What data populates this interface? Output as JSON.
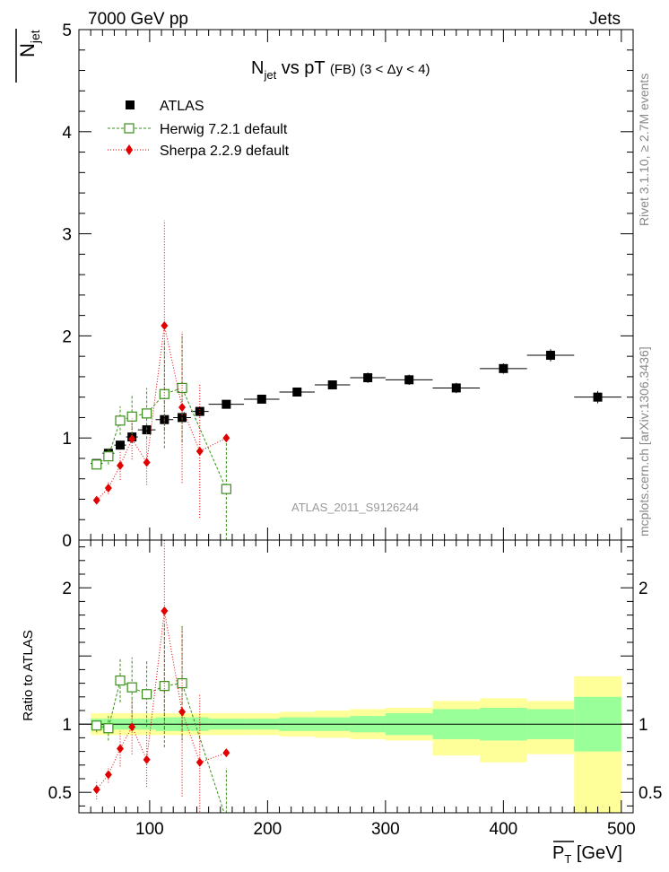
{
  "header": {
    "left": "7000 GeV pp",
    "right": "Jets"
  },
  "side_labels": {
    "rivet": "Rivet 3.1.10, ≥ 2.7M events",
    "mcplots": "mcplots.cern.ch [arXiv:1306.3436]"
  },
  "watermark": "ATLAS_2011_S9126244",
  "chart_data": [
    {
      "type": "scatter",
      "panel": "main",
      "title": "N_jet vs pT (FB) (3 < Δy < 4)",
      "title_parts": {
        "main": "N",
        "sub": "jet",
        "mid": " vs pT ",
        "small": "(FB) (3 < Δy < 4)"
      },
      "ylabel_parts": {
        "main": "N",
        "sub": "jet"
      },
      "xlabel": "",
      "xlim": [
        40,
        510
      ],
      "ylim": [
        0,
        5
      ],
      "x_ticks": [
        100,
        200,
        300,
        400,
        500
      ],
      "y_ticks": [
        0,
        1,
        2,
        3,
        4,
        5
      ],
      "y_tick_labels": [
        "0",
        "1",
        "2",
        "3",
        "4",
        "5"
      ],
      "legend": {
        "position": "top-left",
        "entries": [
          {
            "label": "ATLAS",
            "series": "ATLAS"
          },
          {
            "label": "Herwig 7.2.1 default",
            "series": "Herwig"
          },
          {
            "label": "Sherpa 2.2.9 default",
            "series": "Sherpa"
          }
        ]
      },
      "series": [
        {
          "name": "ATLAS",
          "style": "square",
          "color": "#000000",
          "x": [
            55,
            65,
            75,
            85,
            97.5,
            112.5,
            127.5,
            142.5,
            165,
            195,
            225,
            255,
            285,
            320,
            360,
            400,
            440,
            480
          ],
          "xerr": [
            5,
            5,
            5,
            5,
            7.5,
            7.5,
            7.5,
            7.5,
            15,
            15,
            15,
            15,
            15,
            20,
            20,
            20,
            20,
            20
          ],
          "y": [
            0.75,
            0.85,
            0.93,
            1.01,
            1.08,
            1.18,
            1.2,
            1.26,
            1.33,
            1.38,
            1.45,
            1.52,
            1.59,
            1.57,
            1.49,
            1.68,
            1.81,
            1.4
          ],
          "yerr": [
            0.03,
            0.03,
            0.03,
            0.04,
            0.04,
            0.04,
            0.05,
            0.05,
            0.04,
            0.04,
            0.04,
            0.04,
            0.05,
            0.05,
            0.05,
            0.05,
            0.06,
            0.06
          ]
        },
        {
          "name": "Herwig",
          "style": "open-square-dashed",
          "color": "#3a8f1a",
          "x": [
            55,
            65,
            75,
            85,
            97.5,
            112.5,
            127.5,
            165
          ],
          "y": [
            0.74,
            0.82,
            1.17,
            1.21,
            1.24,
            1.43,
            1.49,
            0.5
          ],
          "yerr": [
            0.04,
            0.08,
            0.14,
            0.22,
            0.25,
            0.53,
            0.53,
            0.5
          ]
        },
        {
          "name": "Sherpa",
          "style": "diamond-dotted",
          "color": "#e00000",
          "x": [
            55,
            65,
            75,
            85,
            97.5,
            112.5,
            127.5,
            142.5,
            165
          ],
          "y": [
            0.39,
            0.51,
            0.73,
            0.99,
            0.76,
            2.1,
            1.3,
            0.87,
            1.0
          ],
          "yerr": [
            0.03,
            0.06,
            0.14,
            0.2,
            0.22,
            1.03,
            0.74,
            0.65,
            0.0
          ]
        }
      ]
    },
    {
      "type": "scatter",
      "panel": "ratio",
      "ylabel": "Ratio to ATLAS",
      "xlabel_parts": {
        "main": "P",
        "sub": "T",
        "unit": " [GeV]"
      },
      "xlim": [
        40,
        510
      ],
      "ylim": [
        0.35,
        2.35
      ],
      "x_ticks": [
        100,
        200,
        300,
        400,
        500
      ],
      "x_tick_labels": [
        "100",
        "200",
        "300",
        "400",
        "500"
      ],
      "y_ticks": [
        0.5,
        1,
        2
      ],
      "y_tick_labels": [
        "0.5",
        "1",
        "2"
      ],
      "reference_line": 1,
      "bands": {
        "x_low": [
          50,
          60,
          70,
          80,
          90,
          105,
          120,
          135,
          150,
          180,
          210,
          240,
          270,
          300,
          340,
          380,
          420,
          460
        ],
        "x_high": [
          60,
          70,
          80,
          90,
          105,
          120,
          135,
          150,
          180,
          210,
          240,
          270,
          300,
          340,
          380,
          420,
          460,
          500
        ],
        "inner": [
          0.04,
          0.04,
          0.04,
          0.04,
          0.04,
          0.05,
          0.05,
          0.05,
          0.04,
          0.04,
          0.05,
          0.05,
          0.06,
          0.08,
          0.11,
          0.12,
          0.11,
          0.2
        ],
        "outer": [
          0.08,
          0.08,
          0.08,
          0.08,
          0.08,
          0.08,
          0.08,
          0.08,
          0.08,
          0.08,
          0.09,
          0.1,
          0.11,
          0.12,
          0.17,
          0.19,
          0.17,
          0.35
        ],
        "outer_lo_clip": [
          0.92,
          0.92,
          0.92,
          0.92,
          0.92,
          0.92,
          0.92,
          0.92,
          0.92,
          0.92,
          0.91,
          0.9,
          0.89,
          0.88,
          0.77,
          0.72,
          0.78,
          0.35
        ],
        "inner_color": "#99ff99",
        "outer_color": "#ffff99"
      },
      "series": [
        {
          "name": "Herwig",
          "style": "open-square-dashed",
          "color": "#3a8f1a",
          "x": [
            55,
            65,
            75,
            85,
            97.5,
            112.5,
            127.5,
            165
          ],
          "y": [
            0.99,
            0.97,
            1.32,
            1.27,
            1.22,
            1.28,
            1.3,
            0.3
          ],
          "yerr": [
            0.05,
            0.09,
            0.16,
            0.22,
            0.24,
            0.45,
            0.42,
            0.38
          ]
        },
        {
          "name": "Sherpa",
          "style": "diamond-dotted",
          "color": "#e00000",
          "x": [
            55,
            65,
            75,
            85,
            97.5,
            112.5,
            127.5,
            142.5,
            165
          ],
          "y": [
            0.52,
            0.63,
            0.82,
            0.98,
            0.74,
            1.83,
            1.09,
            0.72,
            0.79
          ],
          "yerr": [
            0.07,
            0.06,
            0.13,
            0.2,
            0.2,
            0.87,
            0.62,
            0.5,
            0.0
          ]
        }
      ]
    }
  ]
}
